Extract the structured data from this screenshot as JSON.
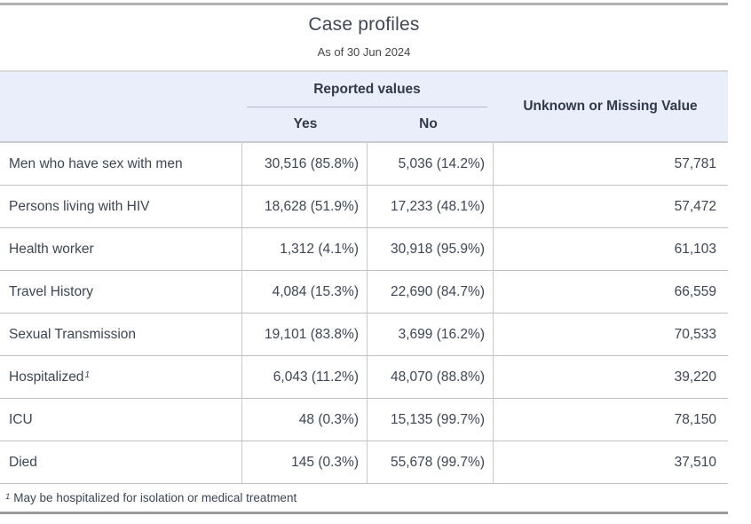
{
  "title": "Case profiles",
  "subtitle": "As of 30 Jun 2024",
  "header": {
    "group": "Reported values",
    "yes": "Yes",
    "no": "No",
    "unknown": "Unknown or Missing Value"
  },
  "rows": [
    {
      "label": "Men who have sex with men",
      "sup": "",
      "yes": "30,516 (85.8%)",
      "no": "5,036 (14.2%)",
      "unknown": "57,781"
    },
    {
      "label": "Persons living with HIV",
      "sup": "",
      "yes": "18,628 (51.9%)",
      "no": "17,233 (48.1%)",
      "unknown": "57,472"
    },
    {
      "label": "Health worker",
      "sup": "",
      "yes": "1,312 (4.1%)",
      "no": "30,918 (95.9%)",
      "unknown": "61,103"
    },
    {
      "label": "Travel History",
      "sup": "",
      "yes": "4,084 (15.3%)",
      "no": "22,690 (84.7%)",
      "unknown": "66,559"
    },
    {
      "label": "Sexual Transmission",
      "sup": "",
      "yes": "19,101 (83.8%)",
      "no": "3,699 (16.2%)",
      "unknown": "70,533"
    },
    {
      "label": "Hospitalized",
      "sup": "1",
      "yes": "6,043 (11.2%)",
      "no": "48,070 (88.8%)",
      "unknown": "39,220"
    },
    {
      "label": "ICU",
      "sup": "",
      "yes": "48 (0.3%)",
      "no": "15,135 (99.7%)",
      "unknown": "78,150"
    },
    {
      "label": "Died",
      "sup": "",
      "yes": "145 (0.3%)",
      "no": "55,678 (99.7%)",
      "unknown": "37,510"
    }
  ],
  "footnote": {
    "sup": "1",
    "text": "May be hospitalized for isolation or medical treatment"
  },
  "colors": {
    "header_bg": "#e9eefa",
    "text": "#3d4654",
    "header_text": "#313a46",
    "row_border": "#bfbfbf",
    "column_border": "#c9c9c9",
    "top_bar": "#b2b2b2",
    "bottom_bar": "#9b9b9b"
  },
  "chart_data": {
    "type": "table",
    "title": "Case profiles",
    "subtitle": "As of 30 Jun 2024",
    "column_groups": [
      {
        "label": "",
        "span": 1
      },
      {
        "label": "Reported values",
        "span": 2
      },
      {
        "label": "Unknown or Missing Value",
        "span": 1
      }
    ],
    "columns": [
      "",
      "Yes",
      "No",
      "Unknown or Missing Value"
    ],
    "rows": [
      [
        "Men who have sex with men",
        "30,516 (85.8%)",
        "5,036 (14.2%)",
        "57,781"
      ],
      [
        "Persons living with HIV",
        "18,628 (51.9%)",
        "17,233 (48.1%)",
        "57,472"
      ],
      [
        "Health worker",
        "1,312 (4.1%)",
        "30,918 (95.9%)",
        "61,103"
      ],
      [
        "Travel History",
        "4,084 (15.3%)",
        "22,690 (84.7%)",
        "66,559"
      ],
      [
        "Sexual Transmission",
        "19,101 (83.8%)",
        "3,699 (16.2%)",
        "70,533"
      ],
      [
        "Hospitalized¹",
        "6,043 (11.2%)",
        "48,070 (88.8%)",
        "39,220"
      ],
      [
        "ICU",
        "48 (0.3%)",
        "15,135 (99.7%)",
        "78,150"
      ],
      [
        "Died",
        "145 (0.3%)",
        "55,678 (99.7%)",
        "37,510"
      ]
    ],
    "footnote": "¹ May be hospitalized for isolation or medical treatment"
  }
}
